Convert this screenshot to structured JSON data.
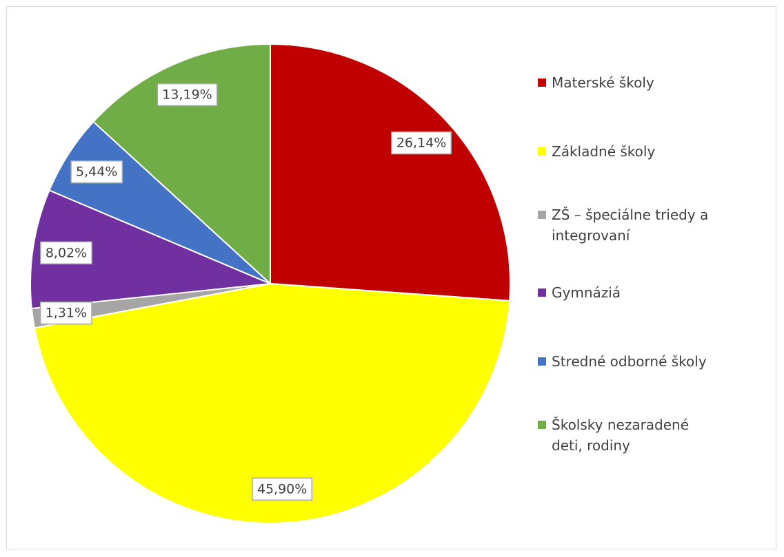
{
  "chart_data": {
    "type": "pie",
    "categories": [
      "Materské školy",
      "Základné školy",
      "ZŠ – špeciálne triedy a integrovaní",
      "Gymnáziá",
      "Stredné odborné školy",
      "Školsky nezaradené deti, rodiny"
    ],
    "values": [
      26.14,
      45.9,
      1.31,
      8.02,
      5.44,
      13.19
    ],
    "value_labels": [
      "26,14%",
      "45,90%",
      "1,31%",
      "8,02%",
      "5,44%",
      "13,19%"
    ],
    "colors": [
      "#c00000",
      "#ffff00",
      "#a5a5a5",
      "#7030a0",
      "#4472c4",
      "#70ad47"
    ],
    "legend": "right"
  }
}
